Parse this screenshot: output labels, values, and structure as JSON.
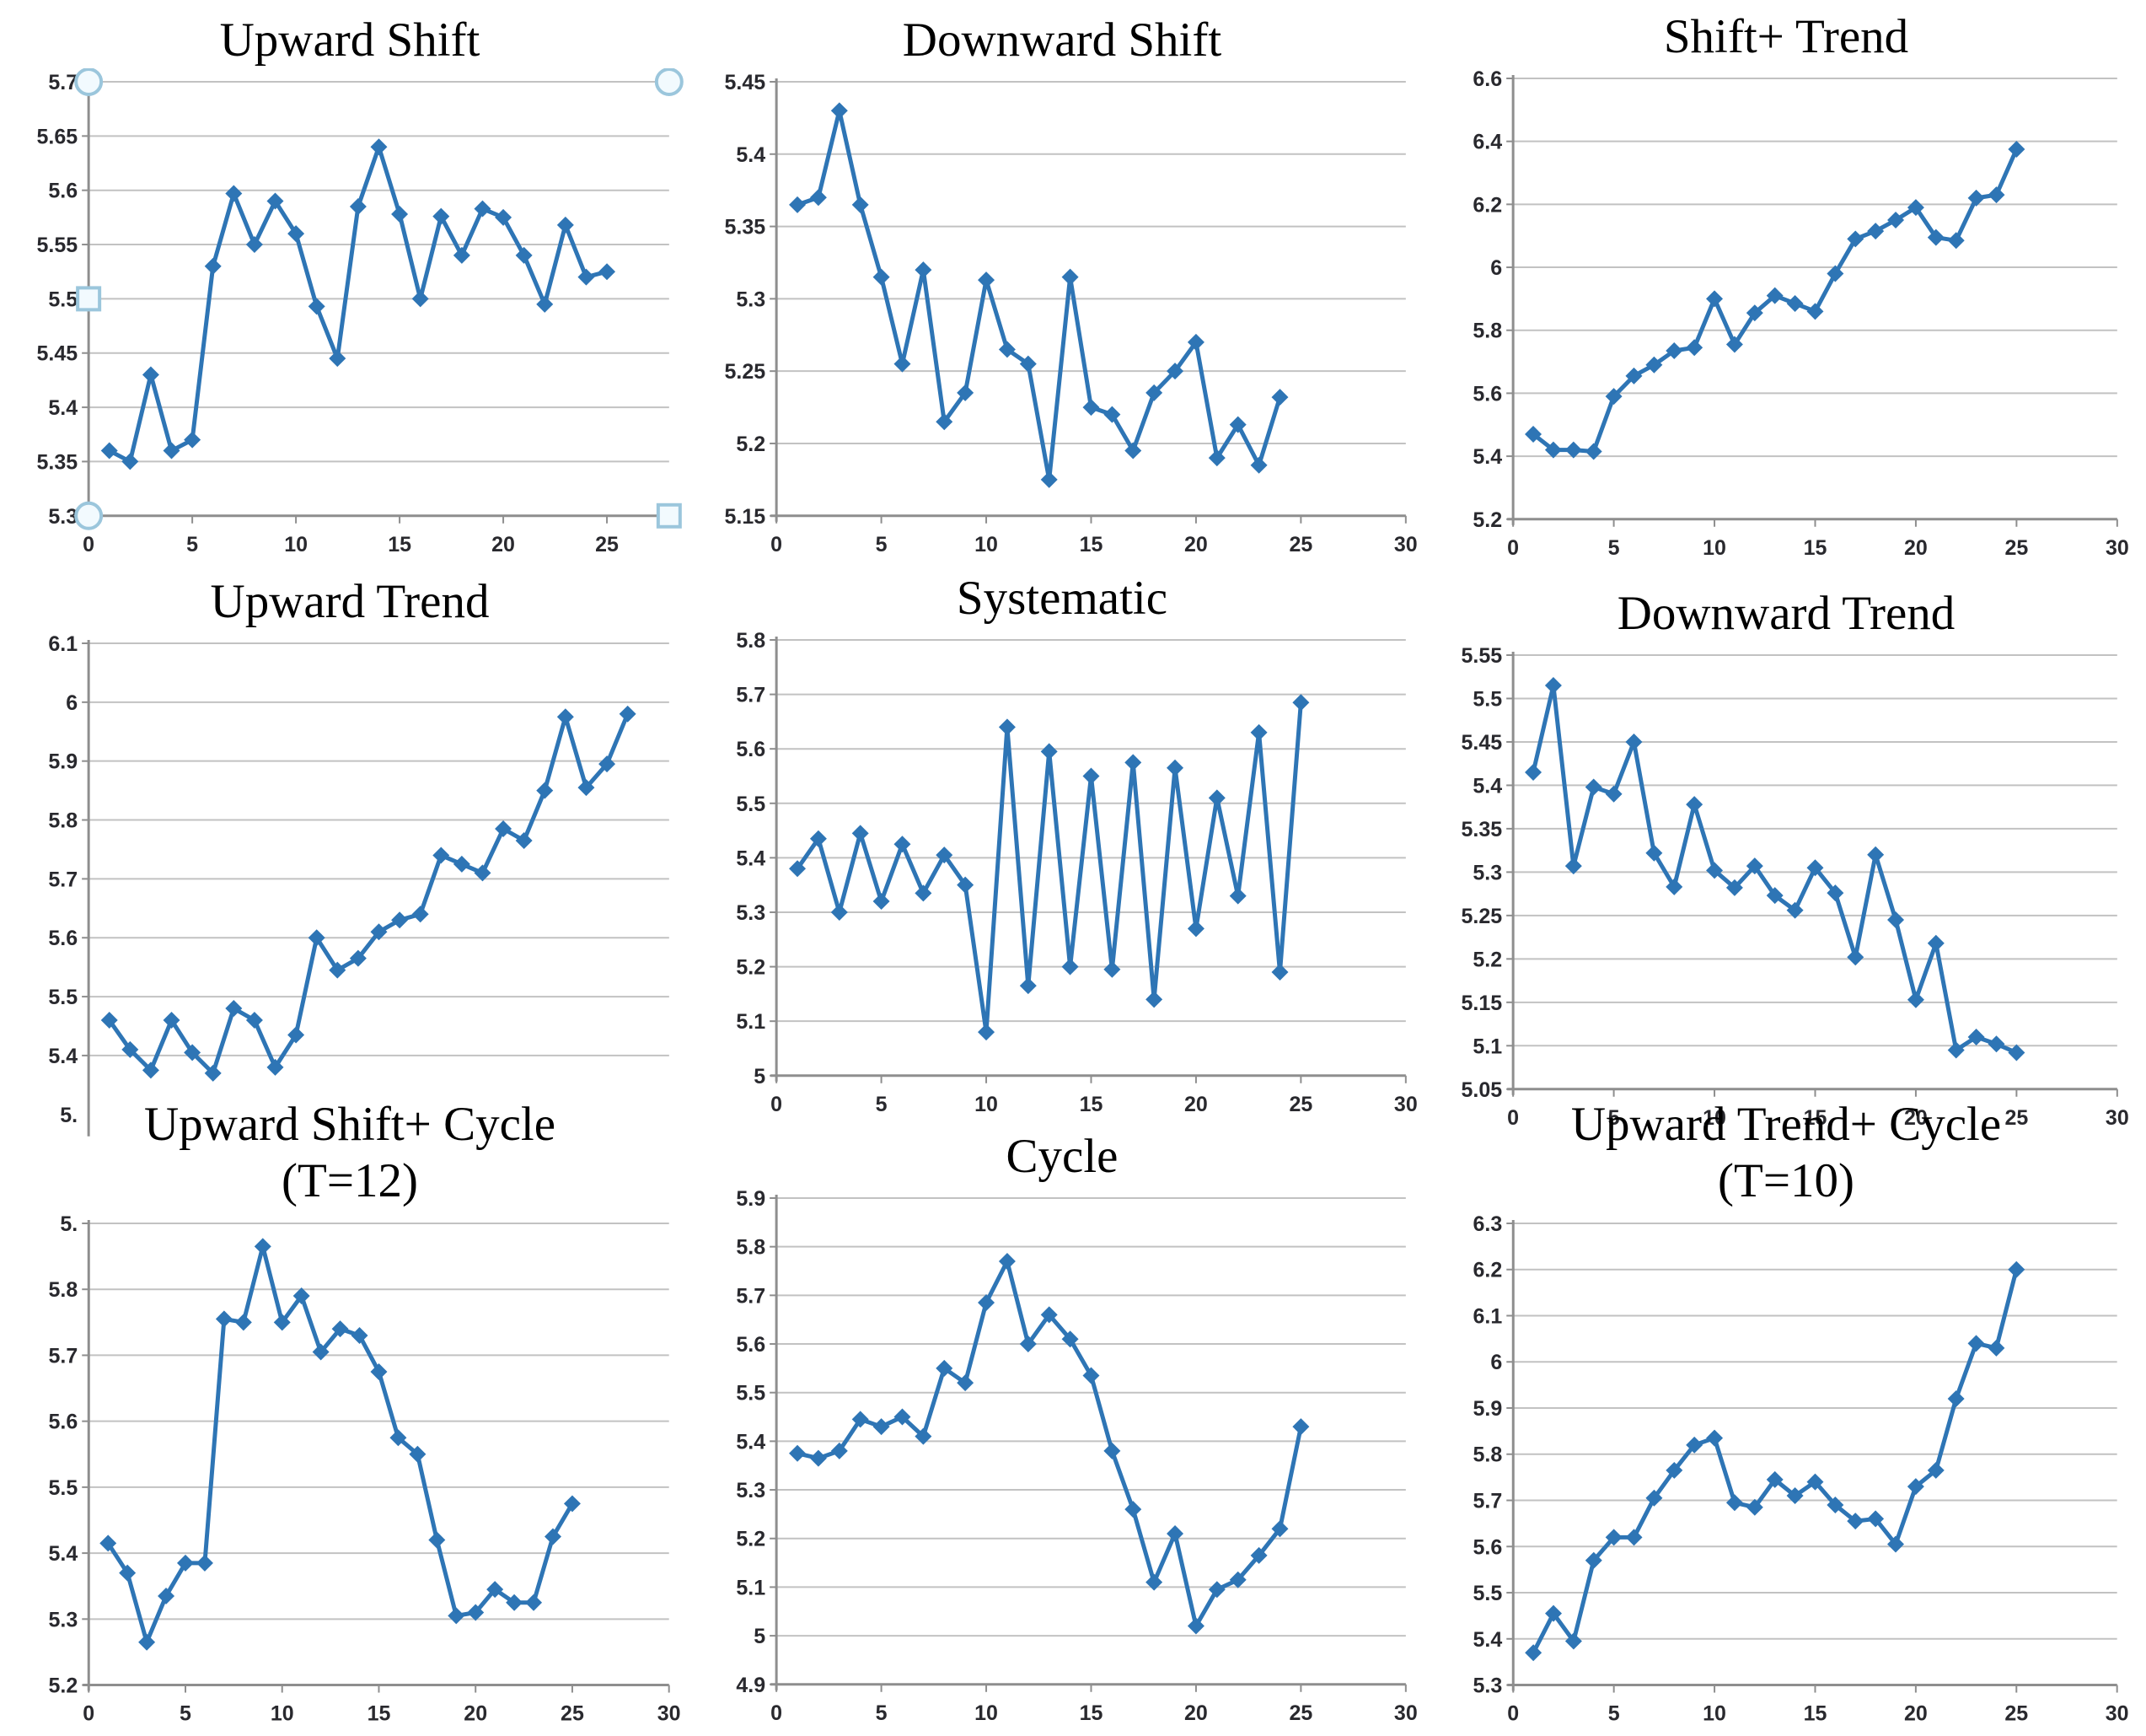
{
  "figure": {
    "description": "3x3 grid of control-chart pattern line plots",
    "rows": 3,
    "cols": 3
  },
  "colors": {
    "series": "#2E75B5",
    "grid": "#C2C2C2",
    "axis": "#8E8E8E",
    "tick_text": "#29292E",
    "title_text": "#000000",
    "handle_stroke": "#9BC6DC",
    "handle_fill": "#F2FAFE",
    "background": "#FFFFFF"
  },
  "chart_data": [
    {
      "type": "line",
      "title": "Upward Shift",
      "subtitle": null,
      "series_color": "#2E75B5",
      "x_start": 1,
      "values": [
        5.36,
        5.35,
        5.43,
        5.36,
        5.37,
        5.53,
        5.597,
        5.55,
        5.59,
        5.56,
        5.493,
        5.445,
        5.585,
        5.64,
        5.578,
        5.5,
        5.576,
        5.54,
        5.583,
        5.575,
        5.54,
        5.495,
        5.568,
        5.52,
        5.525
      ],
      "y_min": 5.3,
      "y_step": 0.05,
      "y_tick_labels": [
        "5.3",
        "5.35",
        "5.4",
        "5.45",
        "5.5",
        "5.55",
        "5.6",
        "5.65",
        "5.7"
      ],
      "x_tick_labels": [
        "0",
        "5",
        "10",
        "15",
        "20",
        "25"
      ],
      "x_max": 28,
      "show_x_axis": true,
      "skip_bottom_gridline": false,
      "selection_handles": [
        {
          "x": 0,
          "y": 5.7,
          "shape": "circle"
        },
        {
          "x": 28,
          "y": 5.7,
          "shape": "circle"
        },
        {
          "x": 0,
          "y": 5.5,
          "shape": "square"
        },
        {
          "x": 0,
          "y": 5.3,
          "shape": "circle"
        },
        {
          "x": 28,
          "y": 5.3,
          "shape": "square"
        }
      ]
    },
    {
      "type": "line",
      "title": "Downward Shift",
      "subtitle": null,
      "series_color": "#2E75B5",
      "x_start": 1,
      "values": [
        5.365,
        5.37,
        5.43,
        5.365,
        5.315,
        5.255,
        5.32,
        5.215,
        5.235,
        5.313,
        5.265,
        5.255,
        5.175,
        5.315,
        5.225,
        5.22,
        5.195,
        5.235,
        5.25,
        5.27,
        5.19,
        5.213,
        5.185,
        5.232
      ],
      "y_min": 5.15,
      "y_step": 0.05,
      "y_tick_labels": [
        "5.15",
        "5.2",
        "5.25",
        "5.3",
        "5.35",
        "5.4",
        "5.45"
      ],
      "x_tick_labels": [
        "0",
        "5",
        "10",
        "15",
        "20",
        "25",
        "30"
      ],
      "x_max": 30,
      "show_x_axis": true,
      "skip_bottom_gridline": false,
      "selection_handles": []
    },
    {
      "type": "line",
      "title": "Shift+ Trend",
      "subtitle": null,
      "series_color": "#2E75B5",
      "x_start": 1,
      "values": [
        5.47,
        5.42,
        5.42,
        5.415,
        5.59,
        5.655,
        5.69,
        5.735,
        5.745,
        5.9,
        5.755,
        5.855,
        5.91,
        5.885,
        5.86,
        5.98,
        6.09,
        6.115,
        6.15,
        6.19,
        6.095,
        6.085,
        6.22,
        6.23,
        6.375
      ],
      "y_min": 5.2,
      "y_step": 0.2,
      "y_tick_labels": [
        "5.2",
        "5.4",
        "5.6",
        "5.8",
        "6",
        "6.2",
        "6.4",
        "6.6"
      ],
      "x_tick_labels": [
        "0",
        "5",
        "10",
        "15",
        "20",
        "25",
        "30"
      ],
      "x_max": 30,
      "show_x_axis": true,
      "skip_bottom_gridline": false,
      "selection_handles": []
    },
    {
      "type": "line",
      "title": "Upward Trend",
      "subtitle": null,
      "series_color": "#2E75B5",
      "x_start": 1,
      "values": [
        5.46,
        5.41,
        5.375,
        5.46,
        5.405,
        5.37,
        5.48,
        5.46,
        5.38,
        5.435,
        5.6,
        5.545,
        5.565,
        5.61,
        5.63,
        5.64,
        5.74,
        5.725,
        5.71,
        5.785,
        5.765,
        5.85,
        5.975,
        5.855,
        5.895,
        5.98
      ],
      "y_min": 5.3,
      "y_step": 0.1,
      "y_tick_labels": [
        "5.",
        "5.4",
        "5.5",
        "5.6",
        "5.7",
        "5.8",
        "5.9",
        "6",
        "6.1"
      ],
      "x_tick_labels": [],
      "x_max": 28,
      "show_x_axis": false,
      "skip_bottom_gridline": true,
      "selection_handles": []
    },
    {
      "type": "line",
      "title": "Systematic",
      "subtitle": null,
      "series_color": "#2E75B5",
      "x_start": 1,
      "values": [
        5.38,
        5.435,
        5.3,
        5.445,
        5.32,
        5.425,
        5.335,
        5.405,
        5.35,
        5.08,
        5.64,
        5.165,
        5.595,
        5.2,
        5.55,
        5.195,
        5.575,
        5.14,
        5.565,
        5.27,
        5.51,
        5.33,
        5.63,
        5.19,
        5.685
      ],
      "y_min": 5.0,
      "y_step": 0.1,
      "y_tick_labels": [
        "5",
        "5.1",
        "5.2",
        "5.3",
        "5.4",
        "5.5",
        "5.6",
        "5.7",
        "5.8"
      ],
      "x_tick_labels": [
        "0",
        "5",
        "10",
        "15",
        "20",
        "25",
        "30"
      ],
      "x_max": 30,
      "show_x_axis": true,
      "skip_bottom_gridline": false,
      "selection_handles": []
    },
    {
      "type": "line",
      "title": "Downward Trend",
      "subtitle": null,
      "series_color": "#2E75B5",
      "x_start": 1,
      "values": [
        5.415,
        5.515,
        5.307,
        5.398,
        5.39,
        5.45,
        5.322,
        5.283,
        5.378,
        5.302,
        5.282,
        5.307,
        5.273,
        5.256,
        5.305,
        5.276,
        5.202,
        5.32,
        5.245,
        5.153,
        5.218,
        5.095,
        5.11,
        5.102,
        5.092
      ],
      "y_min": 5.05,
      "y_step": 0.05,
      "y_tick_labels": [
        "5.05",
        "5.1",
        "5.15",
        "5.2",
        "5.25",
        "5.3",
        "5.35",
        "5.4",
        "5.45",
        "5.5",
        "5.55"
      ],
      "x_tick_labels": [
        "0",
        "5",
        "10",
        "15",
        "20",
        "25",
        "30"
      ],
      "x_max": 30,
      "show_x_axis": true,
      "skip_bottom_gridline": false,
      "selection_handles": []
    },
    {
      "type": "line",
      "title": "Upward Shift+ Cycle",
      "subtitle": "(T=12)",
      "series_color": "#2E75B5",
      "x_start": 1,
      "values": [
        5.415,
        5.37,
        5.265,
        5.335,
        5.385,
        5.385,
        5.755,
        5.75,
        5.865,
        5.75,
        5.79,
        5.705,
        5.74,
        5.73,
        5.675,
        5.575,
        5.55,
        5.42,
        5.305,
        5.31,
        5.345,
        5.325,
        5.325,
        5.425,
        5.475
      ],
      "y_min": 5.2,
      "y_step": 0.1,
      "y_tick_labels": [
        "5.2",
        "5.3",
        "5.4",
        "5.5",
        "5.6",
        "5.7",
        "5.8",
        "5."
      ],
      "x_tick_labels": [
        "0",
        "5",
        "10",
        "15",
        "20",
        "25",
        "30"
      ],
      "x_max": 30,
      "show_x_axis": true,
      "skip_bottom_gridline": false,
      "selection_handles": []
    },
    {
      "type": "line",
      "title": "Cycle",
      "subtitle": null,
      "series_color": "#2E75B5",
      "x_start": 1,
      "values": [
        5.375,
        5.365,
        5.38,
        5.445,
        5.43,
        5.45,
        5.41,
        5.55,
        5.52,
        5.685,
        5.77,
        5.6,
        5.66,
        5.61,
        5.535,
        5.38,
        5.26,
        5.11,
        5.21,
        5.02,
        5.095,
        5.115,
        5.165,
        5.22,
        5.43
      ],
      "y_min": 4.9,
      "y_step": 0.1,
      "y_tick_labels": [
        "4.9",
        "5",
        "5.1",
        "5.2",
        "5.3",
        "5.4",
        "5.5",
        "5.6",
        "5.7",
        "5.8",
        "5.9"
      ],
      "x_tick_labels": [
        "0",
        "5",
        "10",
        "15",
        "20",
        "25",
        "30"
      ],
      "x_max": 30,
      "show_x_axis": true,
      "skip_bottom_gridline": false,
      "selection_handles": []
    },
    {
      "type": "line",
      "title": "Upward Trend+ Cycle",
      "subtitle": "(T=10)",
      "series_color": "#2E75B5",
      "x_start": 1,
      "values": [
        5.37,
        5.455,
        5.395,
        5.57,
        5.62,
        5.62,
        5.705,
        5.765,
        5.82,
        5.835,
        5.695,
        5.685,
        5.745,
        5.71,
        5.74,
        5.69,
        5.655,
        5.66,
        5.605,
        5.73,
        5.765,
        5.92,
        6.04,
        6.03,
        6.2
      ],
      "y_min": 5.3,
      "y_step": 0.1,
      "y_tick_labels": [
        "5.3",
        "5.4",
        "5.5",
        "5.6",
        "5.7",
        "5.8",
        "5.9",
        "6",
        "6.1",
        "6.2",
        "6.3"
      ],
      "x_tick_labels": [
        "0",
        "5",
        "10",
        "15",
        "20",
        "25",
        "30"
      ],
      "x_max": 30,
      "show_x_axis": true,
      "skip_bottom_gridline": false,
      "selection_handles": []
    }
  ]
}
